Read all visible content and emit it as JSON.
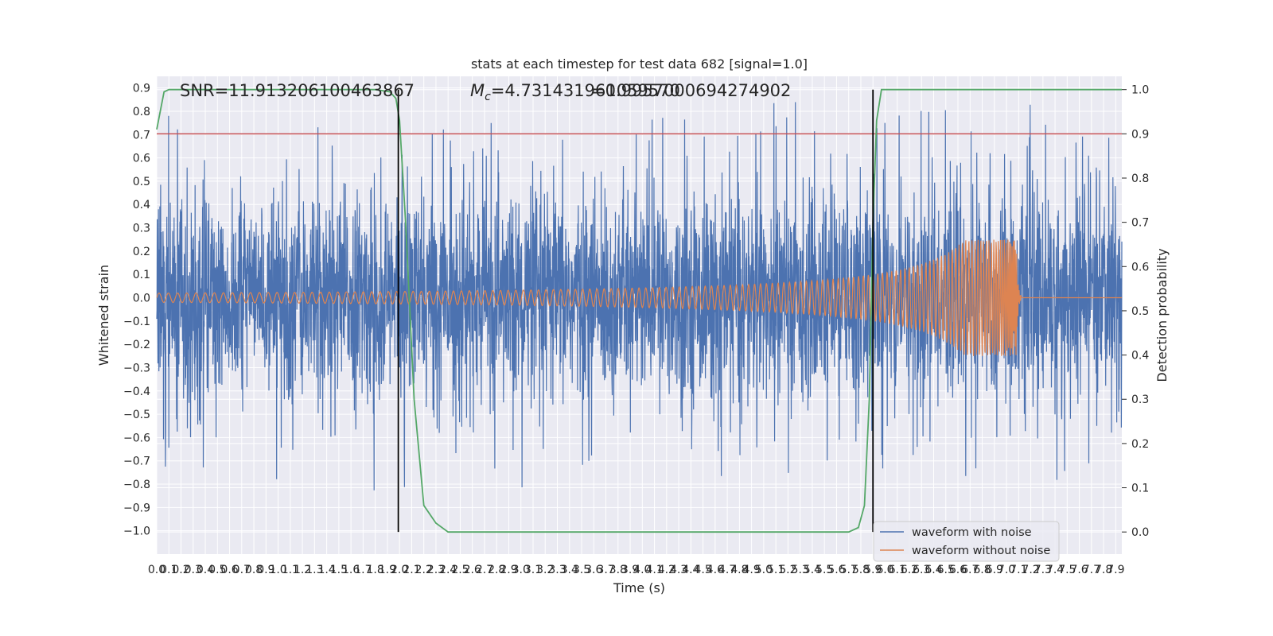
{
  "chart_data": {
    "type": "line",
    "title": "stats at each timestep for test data 682 [signal=1.0]",
    "xlabel": "Time (s)",
    "ylabel": "Whitened strain",
    "y2label": "Detection probability",
    "xlim": [
      0.0,
      7.95
    ],
    "ylim": [
      -1.1,
      0.95
    ],
    "y2lim": [
      -0.05,
      1.03
    ],
    "x_ticks": [
      0.0,
      0.1,
      0.2,
      0.3,
      0.4,
      0.5,
      0.6,
      0.7,
      0.8,
      0.9,
      1.0,
      1.1,
      1.2,
      1.3,
      1.4,
      1.5,
      1.6,
      1.7,
      1.8,
      1.9,
      2.0,
      2.1,
      2.2,
      2.3,
      2.4,
      2.5,
      2.6,
      2.7,
      2.8,
      2.9,
      3.0,
      3.1,
      3.2,
      3.3,
      3.4,
      3.5,
      3.6,
      3.7,
      3.8,
      3.9,
      4.0,
      4.1,
      4.2,
      4.3,
      4.4,
      4.5,
      4.6,
      4.7,
      4.8,
      4.9,
      5.0,
      5.1,
      5.2,
      5.3,
      5.4,
      5.5,
      5.6,
      5.7,
      5.8,
      5.9,
      6.0,
      6.1,
      6.2,
      6.3,
      6.4,
      6.5,
      6.6,
      6.7,
      6.8,
      6.9,
      7.0,
      7.1,
      7.2,
      7.3,
      7.4,
      7.5,
      7.6,
      7.7,
      7.8,
      7.9
    ],
    "y_ticks": [
      0.9,
      0.8,
      0.7,
      0.6,
      0.5,
      0.4,
      0.3,
      0.2,
      0.1,
      0.0,
      -0.1,
      -0.2,
      -0.3,
      -0.4,
      -0.5,
      -0.6,
      -0.7,
      -0.8,
      -0.9,
      -1.0
    ],
    "y_tick_labels": [
      "0.9",
      "0.8",
      "0.7",
      "0.6",
      "0.5",
      "0.4",
      "0.3",
      "0.2",
      "0.1",
      "0.0",
      "−0.1",
      "−0.2",
      "−0.3",
      "−0.4",
      "−0.5",
      "−0.6",
      "−0.7",
      "−0.8",
      "−0.9",
      "−1.0"
    ],
    "y2_ticks": [
      1.0,
      0.9,
      0.8,
      0.7,
      0.6,
      0.5,
      0.4,
      0.3,
      0.2,
      0.1,
      0.0
    ],
    "y2_tick_labels": [
      "1.0",
      "0.9",
      "0.8",
      "0.7",
      "0.6",
      "0.5",
      "0.4",
      "0.3",
      "0.2",
      "0.1",
      "0.0"
    ],
    "threshold": 0.9,
    "vertical_markers": [
      1.99,
      5.9
    ],
    "series": [
      {
        "name": "waveform with noise",
        "color": "#4c72b0",
        "axis": "left",
        "kind": "noise",
        "amplitude_typical": 0.45,
        "amplitude_peak": 0.85
      },
      {
        "name": "waveform without noise",
        "color": "#dd8452",
        "axis": "left",
        "kind": "chirp",
        "start_amplitude": 0.02,
        "peak_time": 7.08,
        "peak_amplitude": 0.25
      },
      {
        "name": "detection probability",
        "color": "#55a868",
        "axis": "right",
        "kind": "probability",
        "x": [
          0.0,
          0.06,
          0.1,
          0.2,
          1.0,
          1.8,
          1.92,
          1.97,
          2.0,
          2.05,
          2.12,
          2.2,
          2.3,
          2.4,
          2.5,
          3.0,
          4.0,
          5.0,
          5.7,
          5.78,
          5.83,
          5.87,
          5.9,
          5.93,
          5.97,
          6.05,
          6.5,
          7.95
        ],
        "y": [
          0.91,
          0.995,
          1.0,
          1.0,
          1.0,
          1.0,
          0.995,
          0.98,
          0.93,
          0.7,
          0.3,
          0.06,
          0.02,
          0.0,
          0.0,
          0.0,
          0.0,
          0.0,
          0.0,
          0.01,
          0.06,
          0.3,
          0.7,
          0.93,
          1.0,
          1.0,
          1.0,
          1.0
        ]
      },
      {
        "name": "threshold",
        "color": "#c44e52",
        "axis": "right",
        "kind": "hline",
        "value": 0.9
      }
    ],
    "annotations": {
      "snr": "SNR=11.913206100463867",
      "mc": "=4.731431961059570",
      "mc_symbol": "M",
      "mc_subscript": "c",
      "overlap": "=0.9957000694274902"
    },
    "legend": [
      "waveform with noise",
      "waveform without noise"
    ],
    "legend_position": "lower-right",
    "grid": true
  }
}
